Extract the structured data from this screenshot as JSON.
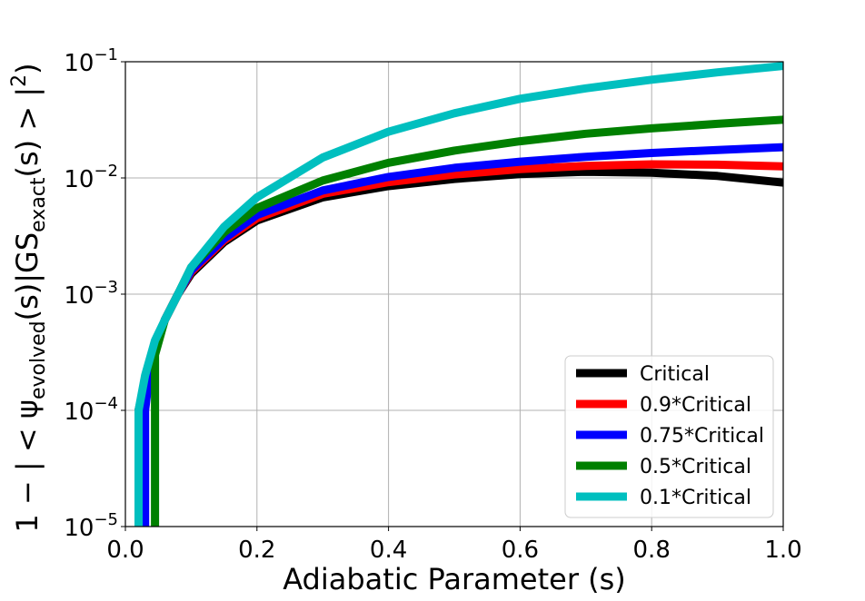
{
  "chart_data": {
    "type": "line",
    "title": "",
    "xlabel": "Adiabatic Parameter (s)",
    "ylabel_parts": {
      "prefix": "1 − | < ψ",
      "sub1": "evolved",
      "mid": "(s)|GS",
      "sub2": "exact",
      "suffix": "(s) > |",
      "sup": "2",
      "close": ")"
    },
    "xscale": "linear",
    "yscale": "log",
    "xlim": [
      0.0,
      1.0
    ],
    "ylim": [
      1e-05,
      0.1
    ],
    "xticks": [
      {
        "value": 0.0,
        "label": "0.0"
      },
      {
        "value": 0.2,
        "label": "0.2"
      },
      {
        "value": 0.4,
        "label": "0.4"
      },
      {
        "value": 0.6,
        "label": "0.6"
      },
      {
        "value": 0.8,
        "label": "0.8"
      },
      {
        "value": 1.0,
        "label": "1.0"
      }
    ],
    "yticks": [
      {
        "value": 1e-05,
        "base": "10",
        "exp": "−5"
      },
      {
        "value": 0.0001,
        "base": "10",
        "exp": "−4"
      },
      {
        "value": 0.001,
        "base": "10",
        "exp": "−3"
      },
      {
        "value": 0.01,
        "base": "10",
        "exp": "−2"
      },
      {
        "value": 0.1,
        "base": "10",
        "exp": "−1"
      }
    ],
    "grid": true,
    "legend_position": "lower-right",
    "series": [
      {
        "name": "Critical",
        "color": "#000000",
        "x": [
          0.02,
          0.04,
          0.06,
          0.08,
          0.1,
          0.15,
          0.2,
          0.3,
          0.4,
          0.5,
          0.6,
          0.7,
          0.8,
          0.9,
          1.0
        ],
        "y": [
          0.0001,
          0.0003,
          0.0006,
          0.001,
          0.0015,
          0.0028,
          0.0043,
          0.0068,
          0.0085,
          0.0098,
          0.0108,
          0.0113,
          0.0111,
          0.0104,
          0.0091
        ]
      },
      {
        "name": "0.9*Critical",
        "color": "#ff0000",
        "x": [
          0.02,
          0.04,
          0.06,
          0.08,
          0.1,
          0.15,
          0.2,
          0.3,
          0.4,
          0.5,
          0.6,
          0.7,
          0.8,
          0.9,
          1.0
        ],
        "y": [
          0.0001,
          0.0003,
          0.0006,
          0.001,
          0.00155,
          0.0029,
          0.0045,
          0.0073,
          0.0092,
          0.0107,
          0.0119,
          0.0127,
          0.0131,
          0.013,
          0.0126
        ]
      },
      {
        "name": "0.75*Critical",
        "color": "#0000ff",
        "x": [
          0.03,
          0.04,
          0.06,
          0.08,
          0.1,
          0.15,
          0.2,
          0.3,
          0.4,
          0.5,
          0.6,
          0.7,
          0.8,
          0.9,
          1.0
        ],
        "y": [
          0.0001,
          0.0003,
          0.0006,
          0.001,
          0.0016,
          0.003,
          0.0048,
          0.0078,
          0.0102,
          0.0122,
          0.0138,
          0.0152,
          0.0164,
          0.0174,
          0.0184
        ]
      },
      {
        "name": "0.5*Critical",
        "color": "#008000",
        "x": [
          0.045,
          0.06,
          0.08,
          0.1,
          0.15,
          0.2,
          0.3,
          0.4,
          0.5,
          0.6,
          0.7,
          0.8,
          0.9,
          1.0
        ],
        "y": [
          0.0003,
          0.0006,
          0.001,
          0.0017,
          0.0034,
          0.0055,
          0.0095,
          0.0135,
          0.0172,
          0.0207,
          0.024,
          0.0267,
          0.0292,
          0.0317
        ]
      },
      {
        "name": "0.1*Critical",
        "color": "#00bfbf",
        "x": [
          0.02,
          0.03,
          0.045,
          0.06,
          0.08,
          0.1,
          0.15,
          0.2,
          0.3,
          0.4,
          0.5,
          0.6,
          0.7,
          0.8,
          0.9,
          1.0
        ],
        "y": [
          0.0001,
          0.0002,
          0.0004,
          0.0006,
          0.001,
          0.0017,
          0.0038,
          0.0068,
          0.015,
          0.025,
          0.036,
          0.048,
          0.059,
          0.07,
          0.081,
          0.092
        ]
      }
    ]
  }
}
